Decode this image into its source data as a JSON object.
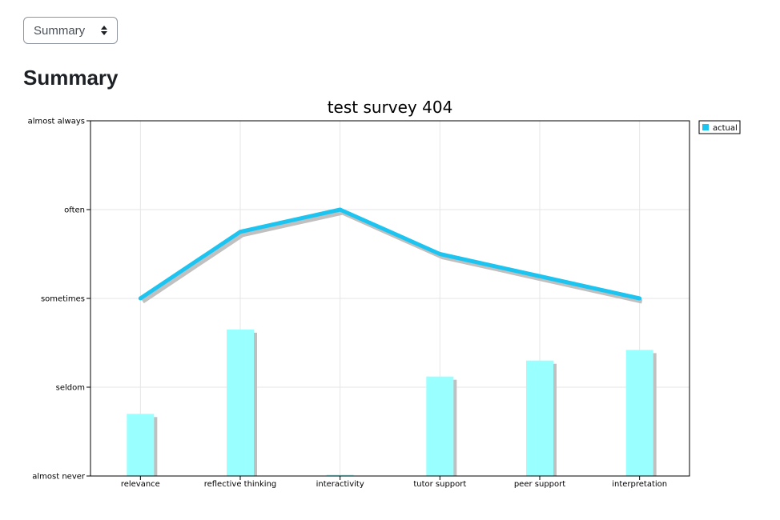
{
  "view_select": {
    "selected": "Summary"
  },
  "page": {
    "heading": "Summary"
  },
  "chart_data": {
    "type": "line",
    "title": "test survey 404",
    "categories": [
      "relevance",
      "reflective thinking",
      "interactivity",
      "tutor support",
      "peer support",
      "interpretation"
    ],
    "y_ticks": [
      "almost never",
      "seldom",
      "sometimes",
      "often",
      "almost always"
    ],
    "ylim": [
      1,
      5
    ],
    "series": [
      {
        "name": "actual",
        "type": "line",
        "values": [
          3.0,
          3.75,
          4.0,
          3.5,
          3.25,
          3.0
        ],
        "color": "#1ec4f0"
      },
      {
        "type": "bar",
        "values": [
          1.7,
          2.65,
          1.0,
          2.12,
          2.3,
          2.42
        ],
        "color": "#99ffff"
      }
    ],
    "grid": true,
    "legend_position": "top-right",
    "shadow_color": "#c0c0c0"
  }
}
